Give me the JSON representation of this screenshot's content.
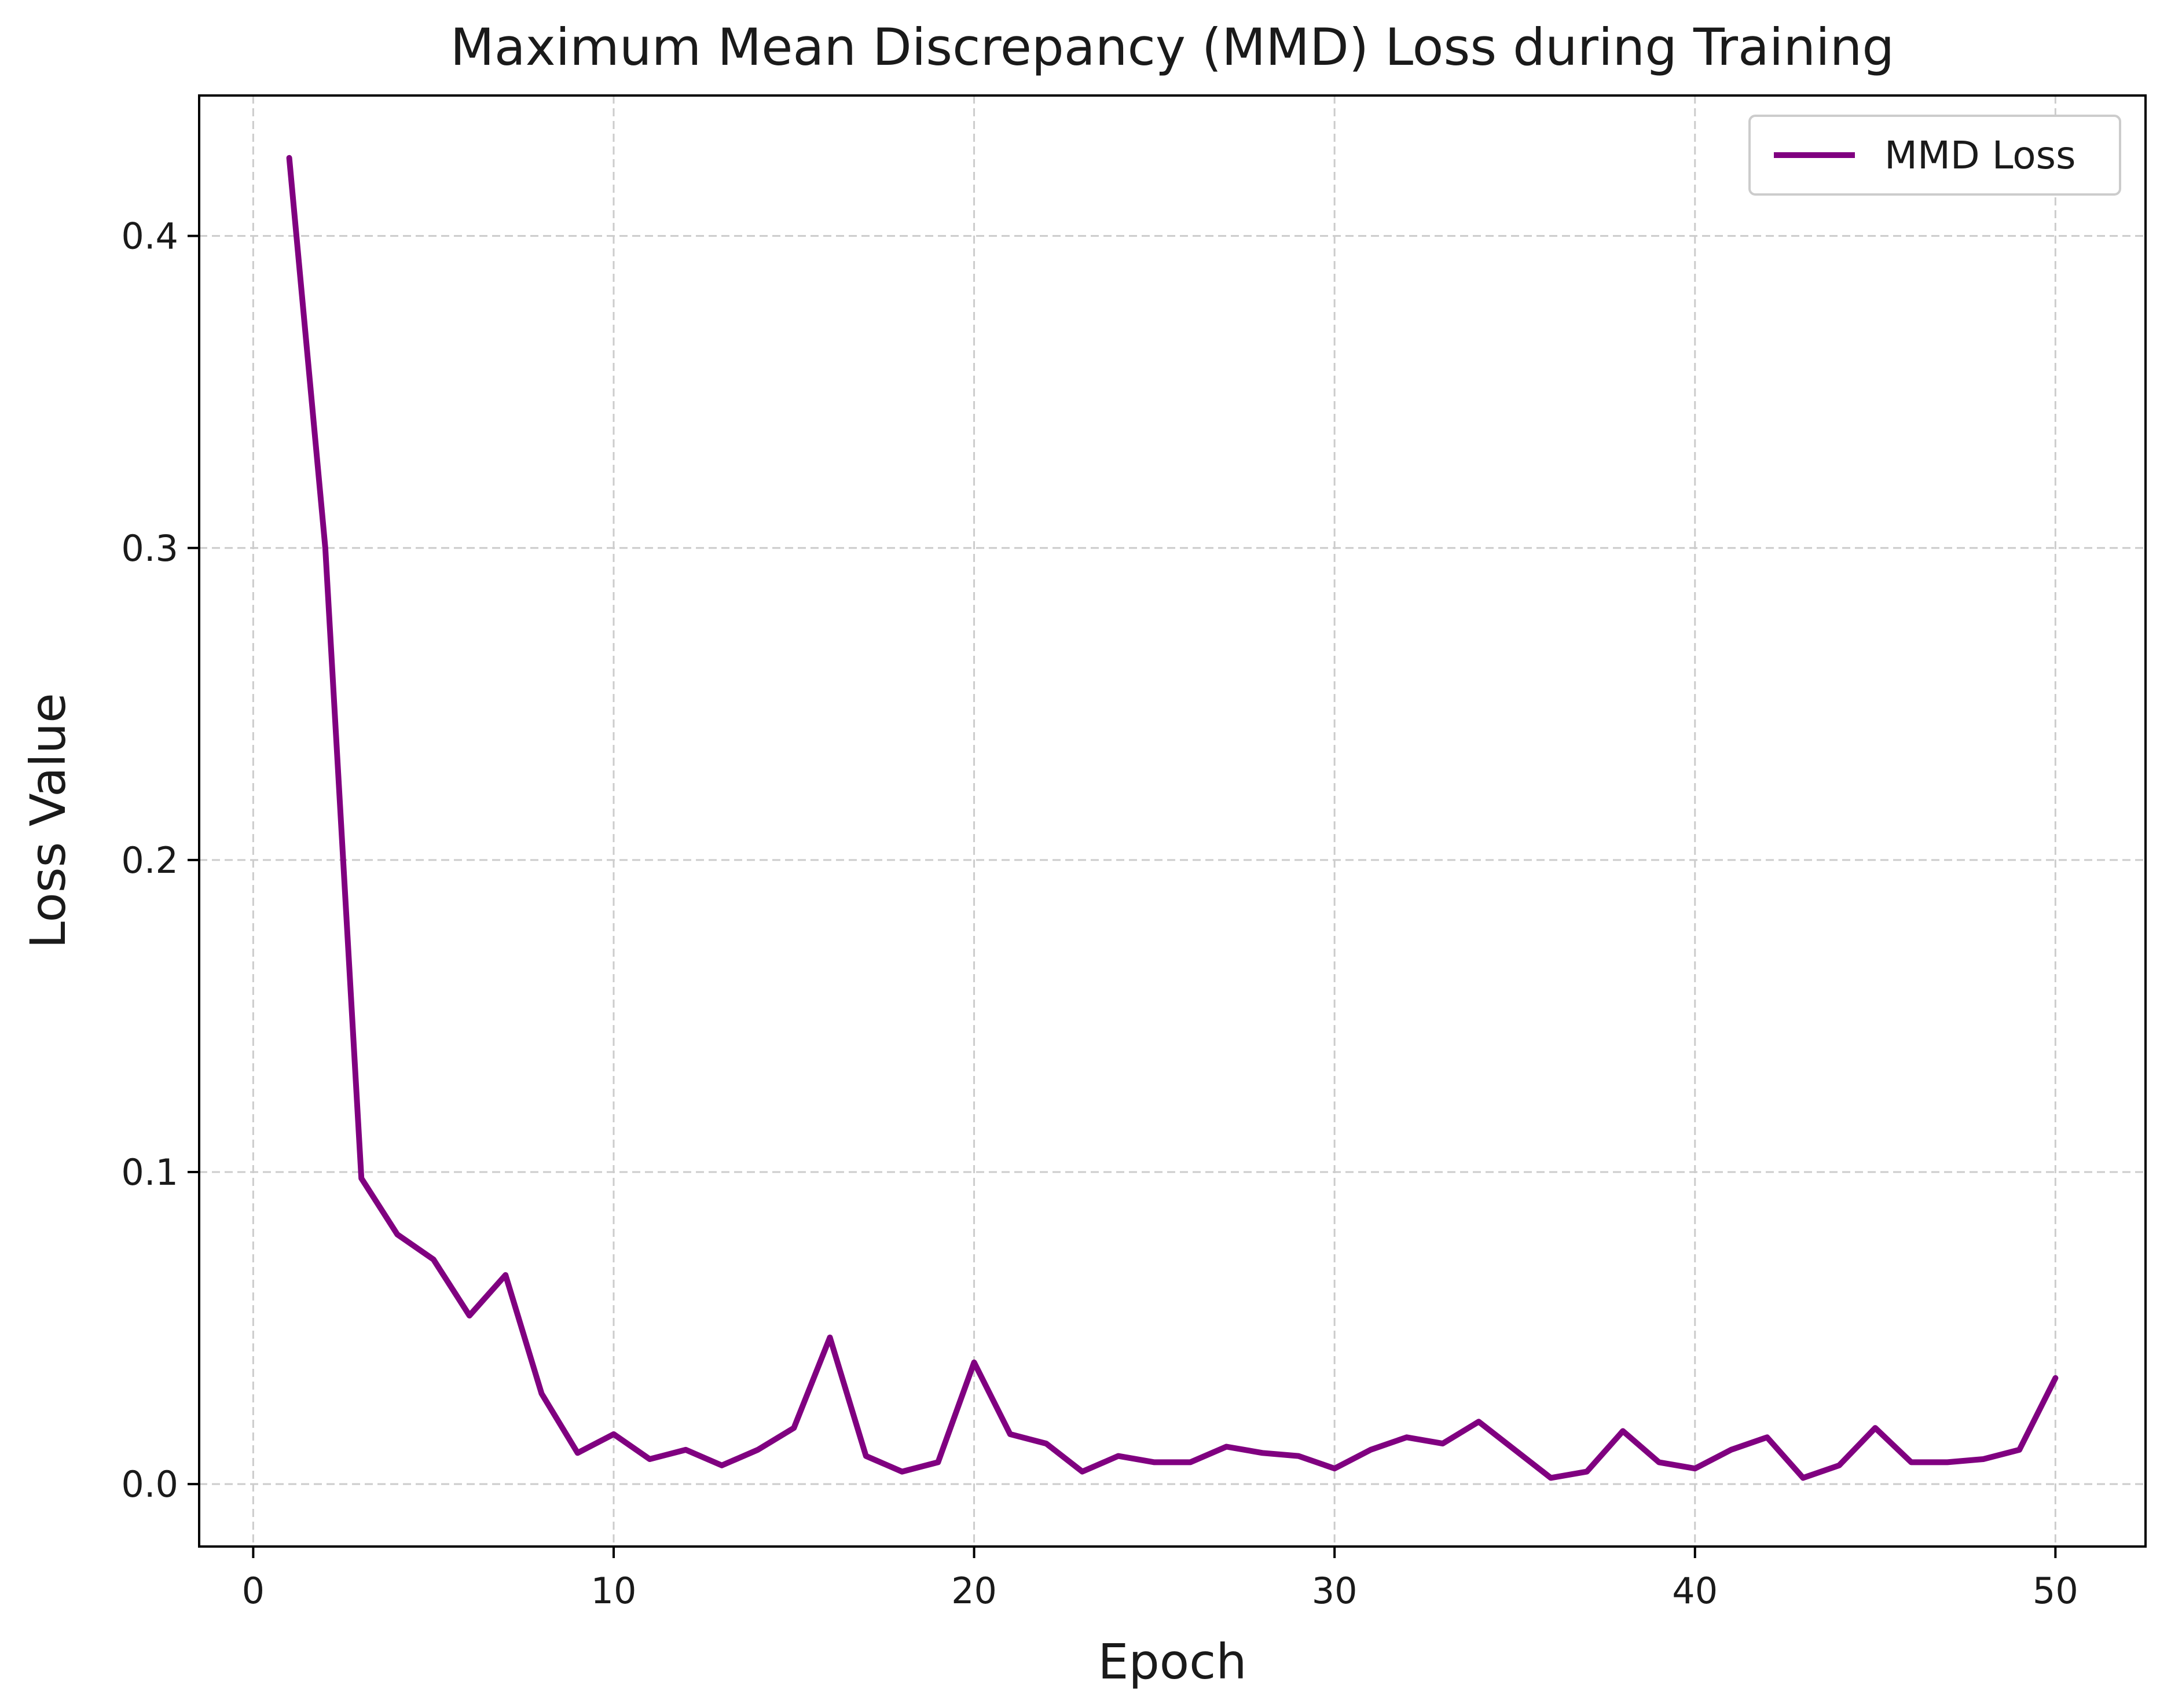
{
  "chart_data": {
    "type": "line",
    "title": "Maximum Mean Discrepancy (MMD) Loss during Training",
    "xlabel": "Epoch",
    "ylabel": "Loss Value",
    "xlim": [
      -1.5,
      52.5
    ],
    "ylim": [
      -0.02,
      0.445
    ],
    "xticks": [
      0,
      10,
      20,
      30,
      40,
      50
    ],
    "yticks": [
      0.0,
      0.1,
      0.2,
      0.3,
      0.4
    ],
    "xtick_labels": [
      "0",
      "10",
      "20",
      "30",
      "40",
      "50"
    ],
    "ytick_labels": [
      "0.0",
      "0.1",
      "0.2",
      "0.3",
      "0.4"
    ],
    "grid": true,
    "grid_style": "dashed",
    "legend_position": "top-right",
    "series": [
      {
        "name": "MMD Loss",
        "color": "#800080",
        "x": [
          1,
          2,
          3,
          4,
          5,
          6,
          7,
          8,
          9,
          10,
          11,
          12,
          13,
          14,
          15,
          16,
          17,
          18,
          19,
          20,
          21,
          22,
          23,
          24,
          25,
          26,
          27,
          28,
          29,
          30,
          31,
          32,
          33,
          34,
          35,
          36,
          37,
          38,
          39,
          40,
          41,
          42,
          43,
          44,
          45,
          46,
          47,
          48,
          49,
          50
        ],
        "y": [
          0.425,
          0.3,
          0.098,
          0.08,
          0.072,
          0.054,
          0.067,
          0.029,
          0.01,
          0.016,
          0.008,
          0.011,
          0.006,
          0.011,
          0.018,
          0.047,
          0.009,
          0.004,
          0.007,
          0.039,
          0.016,
          0.013,
          0.004,
          0.009,
          0.007,
          0.007,
          0.012,
          0.01,
          0.009,
          0.005,
          0.011,
          0.015,
          0.013,
          0.02,
          0.011,
          0.002,
          0.004,
          0.017,
          0.007,
          0.005,
          0.011,
          0.015,
          0.002,
          0.006,
          0.018,
          0.007,
          0.007,
          0.008,
          0.011,
          0.034
        ]
      }
    ]
  }
}
